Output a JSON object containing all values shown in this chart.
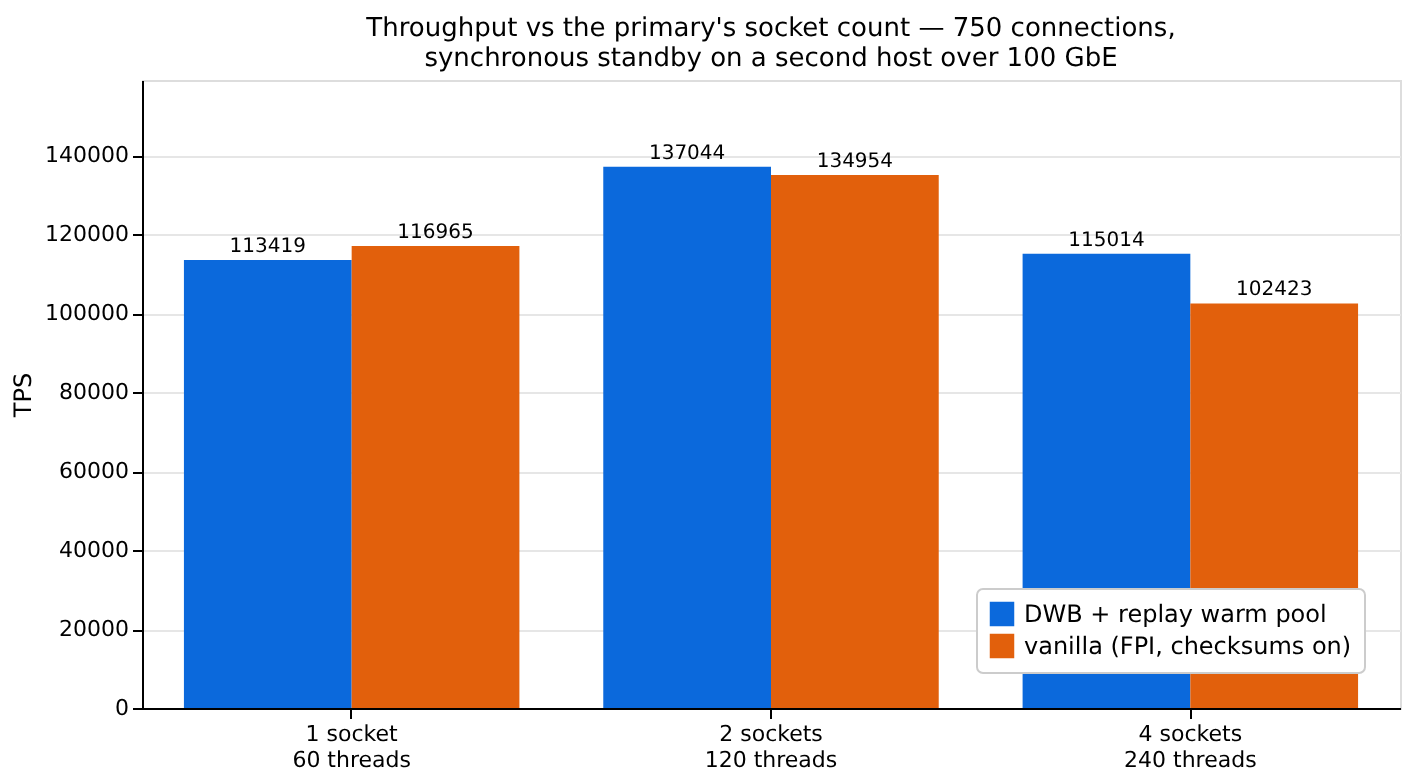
{
  "chart_data": {
    "type": "bar",
    "title": "Throughput vs the primary's socket count — 750 connections,\nsynchronous standby on a second host over 100 GbE",
    "ylabel": "TPS",
    "categories": [
      "1 socket\n60 threads",
      "2 sockets\n120 threads",
      "4 sockets\n240 threads"
    ],
    "series": [
      {
        "name": "DWB + replay warm pool",
        "color": "#0b69dc",
        "values": [
          113419,
          137044,
          115014
        ]
      },
      {
        "name": "vanilla (FPI, checksums on)",
        "color": "#e2600c",
        "values": [
          116965,
          134954,
          102423
        ]
      }
    ],
    "ylim": [
      0,
      159000
    ],
    "yticks": [
      0,
      20000,
      40000,
      60000,
      80000,
      100000,
      120000,
      140000
    ],
    "grid": "y",
    "legend": "bottom right",
    "data_labels": true
  }
}
